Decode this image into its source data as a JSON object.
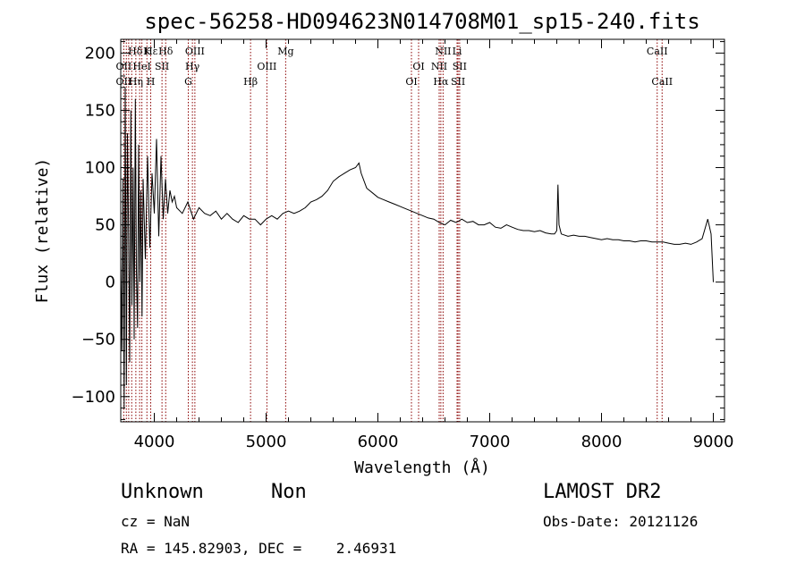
{
  "chart_data": {
    "type": "line",
    "title": "spec-56258-HD094623N014708M01_sp15-240.fits",
    "xlabel": "Wavelength (Å)",
    "ylabel": "Flux (relative)",
    "xlim": [
      3700,
      9100
    ],
    "ylim": [
      -122,
      212
    ],
    "x_ticks": [
      4000,
      5000,
      6000,
      7000,
      8000,
      9000
    ],
    "y_ticks": [
      -100,
      -50,
      0,
      50,
      100,
      150,
      200
    ],
    "grid": false,
    "legend": "none",
    "line_color": "#000000",
    "marker_color": "#8b0000",
    "series": [
      {
        "x": [
          3700,
          3710,
          3720,
          3730,
          3740,
          3750,
          3760,
          3770,
          3780,
          3790,
          3800,
          3810,
          3820,
          3830,
          3840,
          3850,
          3860,
          3870,
          3880,
          3890,
          3900,
          3920,
          3940,
          3960,
          3980,
          4000,
          4020,
          4040,
          4060,
          4080,
          4100,
          4120,
          4140,
          4160,
          4180,
          4200,
          4250,
          4300,
          4350,
          4400,
          4450,
          4500,
          4550,
          4600,
          4650,
          4700,
          4750,
          4800,
          4850,
          4900,
          4950,
          5000,
          5050,
          5100,
          5150,
          5200,
          5250,
          5300,
          5350,
          5400,
          5450,
          5500,
          5550,
          5600,
          5650,
          5700,
          5750,
          5800,
          5830,
          5850,
          5900,
          5950,
          6000,
          6050,
          6100,
          6150,
          6200,
          6250,
          6300,
          6350,
          6400,
          6450,
          6500,
          6550,
          6600,
          6650,
          6700,
          6750,
          6800,
          6850,
          6900,
          6950,
          7000,
          7050,
          7100,
          7150,
          7200,
          7250,
          7300,
          7350,
          7400,
          7450,
          7500,
          7550,
          7580,
          7600,
          7610,
          7620,
          7640,
          7700,
          7750,
          7800,
          7850,
          7900,
          7950,
          8000,
          8050,
          8100,
          8150,
          8200,
          8250,
          8300,
          8350,
          8400,
          8450,
          8500,
          8550,
          8600,
          8650,
          8700,
          8750,
          8800,
          8850,
          8900,
          8950,
          8980,
          9000
        ],
        "y": [
          20,
          -60,
          90,
          -110,
          170,
          -90,
          130,
          40,
          -70,
          150,
          -20,
          100,
          -50,
          160,
          10,
          -40,
          120,
          0,
          80,
          -30,
          90,
          20,
          110,
          30,
          95,
          60,
          125,
          40,
          110,
          55,
          90,
          60,
          80,
          70,
          75,
          65,
          60,
          70,
          55,
          65,
          60,
          58,
          62,
          55,
          60,
          55,
          52,
          58,
          55,
          55,
          50,
          55,
          58,
          55,
          60,
          62,
          60,
          62,
          65,
          70,
          72,
          75,
          80,
          88,
          92,
          95,
          98,
          100,
          104,
          95,
          82,
          78,
          74,
          72,
          70,
          68,
          66,
          64,
          62,
          60,
          58,
          56,
          55,
          52,
          50,
          54,
          52,
          55,
          52,
          53,
          50,
          50,
          52,
          48,
          47,
          50,
          48,
          46,
          45,
          45,
          44,
          45,
          43,
          42,
          42,
          45,
          85,
          50,
          42,
          40,
          41,
          40,
          40,
          39,
          38,
          37,
          38,
          37,
          37,
          36,
          36,
          35,
          36,
          36,
          35,
          35,
          35,
          34,
          33,
          33,
          34,
          33,
          35,
          38,
          55,
          42,
          0
        ]
      }
    ],
    "line_markers": [
      {
        "label": "Hδ",
        "x": 3830,
        "row": 1
      },
      {
        "label": "OII",
        "x": 3727,
        "row": 2
      },
      {
        "label": "K",
        "x": 3934,
        "row": 1
      },
      {
        "label": "Hε",
        "x": 3970,
        "row": 1
      },
      {
        "label": "HeI",
        "x": 3889,
        "row": 2
      },
      {
        "label": "SII",
        "x": 4069,
        "row": 2
      },
      {
        "label": "H",
        "x": 3968,
        "row": 3
      },
      {
        "label": "OII",
        "x": 3727,
        "row": 3
      },
      {
        "label": "Hη",
        "x": 3835,
        "row": 3
      },
      {
        "label": "Hδ",
        "x": 4102,
        "row": 1
      },
      {
        "label": "OIII",
        "x": 4363,
        "row": 1
      },
      {
        "label": "Hγ",
        "x": 4341,
        "row": 2
      },
      {
        "label": "G",
        "x": 4304,
        "row": 3
      },
      {
        "label": "Mg",
        "x": 5175,
        "row": 1
      },
      {
        "label": "OIII",
        "x": 5007,
        "row": 2
      },
      {
        "label": "Hβ",
        "x": 4861,
        "row": 3
      },
      {
        "label": "OI",
        "x": 6364,
        "row": 2
      },
      {
        "label": "OI",
        "x": 6300,
        "row": 3
      },
      {
        "label": "NII",
        "x": 6583,
        "row": 1
      },
      {
        "label": "Li",
        "x": 6708,
        "row": 1
      },
      {
        "label": "NII",
        "x": 6548,
        "row": 2
      },
      {
        "label": "SII",
        "x": 6731,
        "row": 2
      },
      {
        "label": "Hα",
        "x": 6563,
        "row": 3
      },
      {
        "label": "SII",
        "x": 6717,
        "row": 3
      },
      {
        "label": "CaII",
        "x": 8498,
        "row": 1
      },
      {
        "label": "CaII",
        "x": 8542,
        "row": 3
      }
    ],
    "marker_lines_x": [
      3727,
      3750,
      3771,
      3798,
      3835,
      3869,
      3889,
      3934,
      3968,
      4069,
      4102,
      4304,
      4341,
      4363,
      4861,
      5007,
      5175,
      6300,
      6364,
      6548,
      6563,
      6583,
      6708,
      6717,
      6731,
      8498,
      8542
    ]
  },
  "info": {
    "class_label": "Unknown",
    "subclass_label": "Non",
    "survey": "LAMOST DR2",
    "cz": "cz = NaN",
    "obs_date": "Obs-Date: 20121126",
    "coords": "RA = 145.82903, DEC =    2.46931"
  }
}
